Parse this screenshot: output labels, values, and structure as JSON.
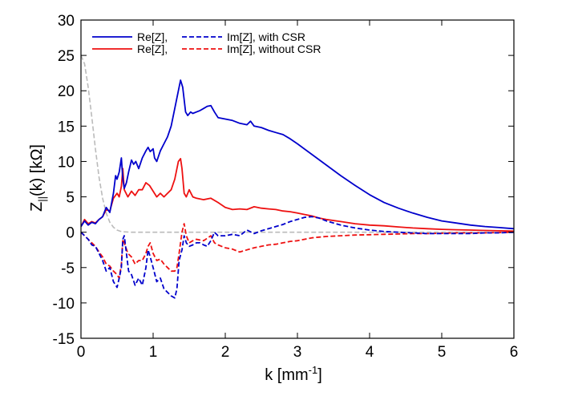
{
  "chart_data": {
    "type": "line",
    "xlabel": "k [mm",
    "xlabel_sup": "-1",
    "xlabel_end": "]",
    "ylabel": "Z",
    "ylabel_sub": "||",
    "ylabel_end": "(k) [kΩ]",
    "xlim": [
      0,
      6
    ],
    "ylim": [
      -15,
      30
    ],
    "xticks": [
      "0",
      "1",
      "2",
      "3",
      "4",
      "5",
      "6"
    ],
    "yticks": [
      "-15",
      "-10",
      "-5",
      "0",
      "5",
      "10",
      "15",
      "20",
      "25",
      "30"
    ],
    "grid": false,
    "legend_position": "top-left",
    "legend_rows": [
      {
        "left": "Re[Z],",
        "right": "Im[Z],  with CSR"
      },
      {
        "left": "Re[Z],",
        "right": "Im[Z],  without CSR"
      }
    ],
    "colors": {
      "with_csr": "#0000cc",
      "without_csr": "#ee1111",
      "bunch": "#bbbbbb"
    },
    "series": [
      {
        "key": "re_with",
        "style": "solid",
        "color": "#0000cc",
        "points": [
          [
            0,
            0.8
          ],
          [
            0.05,
            1.6
          ],
          [
            0.1,
            1.0
          ],
          [
            0.15,
            1.4
          ],
          [
            0.2,
            1.2
          ],
          [
            0.25,
            1.8
          ],
          [
            0.3,
            2.2
          ],
          [
            0.35,
            3.5
          ],
          [
            0.4,
            2.8
          ],
          [
            0.45,
            5.5
          ],
          [
            0.48,
            8.0
          ],
          [
            0.5,
            7.5
          ],
          [
            0.53,
            8.5
          ],
          [
            0.56,
            10.5
          ],
          [
            0.58,
            7.5
          ],
          [
            0.6,
            6.2
          ],
          [
            0.63,
            7.0
          ],
          [
            0.66,
            8.5
          ],
          [
            0.7,
            10.2
          ],
          [
            0.73,
            9.6
          ],
          [
            0.76,
            10.0
          ],
          [
            0.8,
            9.0
          ],
          [
            0.85,
            10.5
          ],
          [
            0.9,
            11.5
          ],
          [
            0.93,
            12.0
          ],
          [
            0.96,
            11.4
          ],
          [
            1.0,
            11.8
          ],
          [
            1.02,
            10.5
          ],
          [
            1.05,
            10.0
          ],
          [
            1.1,
            11.5
          ],
          [
            1.15,
            12.5
          ],
          [
            1.2,
            13.5
          ],
          [
            1.25,
            15.0
          ],
          [
            1.3,
            17.5
          ],
          [
            1.35,
            20.0
          ],
          [
            1.38,
            21.5
          ],
          [
            1.41,
            20.5
          ],
          [
            1.45,
            17.0
          ],
          [
            1.48,
            16.5
          ],
          [
            1.52,
            17.0
          ],
          [
            1.55,
            16.8
          ],
          [
            1.6,
            17.0
          ],
          [
            1.65,
            17.2
          ],
          [
            1.7,
            17.5
          ],
          [
            1.75,
            17.8
          ],
          [
            1.8,
            17.9
          ],
          [
            1.85,
            17.0
          ],
          [
            1.9,
            16.2
          ],
          [
            2.0,
            16.0
          ],
          [
            2.1,
            15.8
          ],
          [
            2.2,
            15.4
          ],
          [
            2.3,
            15.2
          ],
          [
            2.35,
            15.7
          ],
          [
            2.4,
            15.0
          ],
          [
            2.5,
            14.8
          ],
          [
            2.6,
            14.4
          ],
          [
            2.7,
            14.1
          ],
          [
            2.8,
            13.8
          ],
          [
            2.9,
            13.2
          ],
          [
            3.0,
            12.5
          ],
          [
            3.2,
            11.0
          ],
          [
            3.4,
            9.5
          ],
          [
            3.6,
            8.0
          ],
          [
            3.8,
            6.6
          ],
          [
            4.0,
            5.3
          ],
          [
            4.2,
            4.2
          ],
          [
            4.4,
            3.4
          ],
          [
            4.6,
            2.7
          ],
          [
            4.8,
            2.1
          ],
          [
            5.0,
            1.6
          ],
          [
            5.2,
            1.3
          ],
          [
            5.4,
            1.0
          ],
          [
            5.6,
            0.8
          ],
          [
            5.8,
            0.65
          ],
          [
            6.0,
            0.5
          ]
        ]
      },
      {
        "key": "re_without",
        "style": "solid",
        "color": "#ee1111",
        "points": [
          [
            0,
            0.8
          ],
          [
            0.05,
            1.8
          ],
          [
            0.1,
            1.2
          ],
          [
            0.15,
            1.5
          ],
          [
            0.2,
            1.3
          ],
          [
            0.25,
            1.8
          ],
          [
            0.3,
            2.2
          ],
          [
            0.35,
            3.2
          ],
          [
            0.4,
            3.0
          ],
          [
            0.45,
            4.8
          ],
          [
            0.5,
            5.5
          ],
          [
            0.53,
            5.0
          ],
          [
            0.56,
            6.5
          ],
          [
            0.58,
            9.0
          ],
          [
            0.6,
            6.0
          ],
          [
            0.65,
            5.0
          ],
          [
            0.7,
            5.8
          ],
          [
            0.75,
            5.2
          ],
          [
            0.8,
            6.0
          ],
          [
            0.85,
            6.0
          ],
          [
            0.9,
            7.0
          ],
          [
            0.95,
            6.6
          ],
          [
            1.0,
            5.8
          ],
          [
            1.05,
            5.0
          ],
          [
            1.1,
            5.5
          ],
          [
            1.15,
            5.0
          ],
          [
            1.2,
            5.5
          ],
          [
            1.25,
            6.0
          ],
          [
            1.3,
            7.5
          ],
          [
            1.35,
            10.0
          ],
          [
            1.38,
            10.4
          ],
          [
            1.4,
            9.0
          ],
          [
            1.43,
            5.5
          ],
          [
            1.46,
            5.0
          ],
          [
            1.5,
            6.0
          ],
          [
            1.55,
            5.0
          ],
          [
            1.6,
            4.8
          ],
          [
            1.7,
            4.6
          ],
          [
            1.8,
            4.8
          ],
          [
            1.9,
            4.2
          ],
          [
            2.0,
            3.5
          ],
          [
            2.1,
            3.2
          ],
          [
            2.2,
            3.3
          ],
          [
            2.3,
            3.2
          ],
          [
            2.4,
            3.6
          ],
          [
            2.5,
            3.4
          ],
          [
            2.6,
            3.3
          ],
          [
            2.7,
            3.2
          ],
          [
            2.8,
            3.0
          ],
          [
            2.9,
            2.9
          ],
          [
            3.0,
            2.7
          ],
          [
            3.1,
            2.5
          ],
          [
            3.2,
            2.3
          ],
          [
            3.3,
            2.0
          ],
          [
            3.4,
            1.8
          ],
          [
            3.6,
            1.5
          ],
          [
            3.8,
            1.2
          ],
          [
            4.0,
            1.0
          ],
          [
            4.2,
            0.9
          ],
          [
            4.4,
            0.75
          ],
          [
            4.6,
            0.6
          ],
          [
            4.8,
            0.5
          ],
          [
            5.0,
            0.4
          ],
          [
            5.2,
            0.35
          ],
          [
            5.4,
            0.3
          ],
          [
            5.6,
            0.25
          ],
          [
            5.8,
            0.2
          ],
          [
            6.0,
            0.15
          ]
        ]
      },
      {
        "key": "im_with",
        "style": "dashed",
        "color": "#0000cc",
        "points": [
          [
            0,
            0
          ],
          [
            0.05,
            -0.5
          ],
          [
            0.1,
            -1.0
          ],
          [
            0.15,
            -1.8
          ],
          [
            0.2,
            -2.0
          ],
          [
            0.25,
            -3.0
          ],
          [
            0.3,
            -4.0
          ],
          [
            0.35,
            -5.5
          ],
          [
            0.4,
            -5.0
          ],
          [
            0.45,
            -7.0
          ],
          [
            0.5,
            -7.8
          ],
          [
            0.53,
            -6.5
          ],
          [
            0.56,
            -5.0
          ],
          [
            0.58,
            -1.0
          ],
          [
            0.6,
            -0.5
          ],
          [
            0.63,
            -3.0
          ],
          [
            0.66,
            -5.5
          ],
          [
            0.7,
            -6.0
          ],
          [
            0.75,
            -7.5
          ],
          [
            0.8,
            -6.5
          ],
          [
            0.85,
            -7.5
          ],
          [
            0.9,
            -5.0
          ],
          [
            0.93,
            -2.5
          ],
          [
            0.96,
            -3.5
          ],
          [
            1.0,
            -5.0
          ],
          [
            1.05,
            -7.0
          ],
          [
            1.1,
            -6.5
          ],
          [
            1.15,
            -8.0
          ],
          [
            1.2,
            -8.5
          ],
          [
            1.25,
            -9.0
          ],
          [
            1.3,
            -9.3
          ],
          [
            1.33,
            -8.0
          ],
          [
            1.36,
            -4.0
          ],
          [
            1.4,
            -2.5
          ],
          [
            1.43,
            -0.5
          ],
          [
            1.46,
            -1.5
          ],
          [
            1.5,
            -2.0
          ],
          [
            1.55,
            -1.8
          ],
          [
            1.6,
            -1.5
          ],
          [
            1.65,
            -1.5
          ],
          [
            1.7,
            -1.8
          ],
          [
            1.75,
            -2.0
          ],
          [
            1.8,
            -1.2
          ],
          [
            1.85,
            0.0
          ],
          [
            1.9,
            -0.5
          ],
          [
            2.0,
            -0.5
          ],
          [
            2.1,
            -0.3
          ],
          [
            2.2,
            -0.5
          ],
          [
            2.3,
            0.3
          ],
          [
            2.4,
            -0.2
          ],
          [
            2.5,
            0.2
          ],
          [
            2.6,
            0.5
          ],
          [
            2.7,
            0.8
          ],
          [
            2.8,
            1.1
          ],
          [
            2.9,
            1.5
          ],
          [
            3.0,
            1.8
          ],
          [
            3.1,
            2.1
          ],
          [
            3.2,
            2.2
          ],
          [
            3.3,
            2.0
          ],
          [
            3.4,
            1.6
          ],
          [
            3.6,
            1.0
          ],
          [
            3.8,
            0.6
          ],
          [
            4.0,
            0.3
          ],
          [
            4.2,
            0.1
          ],
          [
            4.4,
            0.0
          ],
          [
            4.6,
            -0.1
          ],
          [
            4.8,
            -0.2
          ],
          [
            5.0,
            -0.2
          ],
          [
            5.2,
            -0.2
          ],
          [
            5.4,
            -0.2
          ],
          [
            5.6,
            -0.1
          ],
          [
            5.8,
            -0.1
          ],
          [
            6.0,
            0.0
          ]
        ]
      },
      {
        "key": "im_without",
        "style": "dashed",
        "color": "#ee1111",
        "points": [
          [
            0,
            0
          ],
          [
            0.05,
            -0.5
          ],
          [
            0.1,
            -1.0
          ],
          [
            0.15,
            -1.5
          ],
          [
            0.2,
            -2.0
          ],
          [
            0.25,
            -2.8
          ],
          [
            0.3,
            -3.5
          ],
          [
            0.35,
            -4.5
          ],
          [
            0.4,
            -4.8
          ],
          [
            0.45,
            -5.5
          ],
          [
            0.5,
            -6.0
          ],
          [
            0.53,
            -6.5
          ],
          [
            0.56,
            -4.5
          ],
          [
            0.58,
            -1.0
          ],
          [
            0.6,
            -1.5
          ],
          [
            0.65,
            -3.0
          ],
          [
            0.7,
            -3.5
          ],
          [
            0.75,
            -4.5
          ],
          [
            0.8,
            -4.0
          ],
          [
            0.85,
            -4.0
          ],
          [
            0.9,
            -3.0
          ],
          [
            0.93,
            -2.0
          ],
          [
            0.96,
            -1.5
          ],
          [
            1.0,
            -3.0
          ],
          [
            1.05,
            -4.0
          ],
          [
            1.1,
            -3.8
          ],
          [
            1.15,
            -4.5
          ],
          [
            1.2,
            -5.0
          ],
          [
            1.25,
            -5.5
          ],
          [
            1.3,
            -5.5
          ],
          [
            1.33,
            -5.0
          ],
          [
            1.36,
            -3.0
          ],
          [
            1.4,
            0.0
          ],
          [
            1.43,
            1.2
          ],
          [
            1.46,
            -0.5
          ],
          [
            1.5,
            -1.5
          ],
          [
            1.55,
            -1.2
          ],
          [
            1.6,
            -1.0
          ],
          [
            1.7,
            -1.2
          ],
          [
            1.8,
            -0.5
          ],
          [
            1.85,
            -1.5
          ],
          [
            1.9,
            -1.8
          ],
          [
            2.0,
            -2.2
          ],
          [
            2.1,
            -2.4
          ],
          [
            2.2,
            -2.8
          ],
          [
            2.3,
            -2.5
          ],
          [
            2.4,
            -2.2
          ],
          [
            2.5,
            -2.0
          ],
          [
            2.6,
            -1.8
          ],
          [
            2.7,
            -1.7
          ],
          [
            2.8,
            -1.5
          ],
          [
            2.9,
            -1.3
          ],
          [
            3.0,
            -1.2
          ],
          [
            3.1,
            -1.0
          ],
          [
            3.2,
            -0.8
          ],
          [
            3.3,
            -0.7
          ],
          [
            3.4,
            -0.6
          ],
          [
            3.6,
            -0.5
          ],
          [
            3.8,
            -0.4
          ],
          [
            4.0,
            -0.35
          ],
          [
            4.2,
            -0.3
          ],
          [
            4.4,
            -0.25
          ],
          [
            4.6,
            -0.2
          ],
          [
            4.8,
            -0.2
          ],
          [
            5.0,
            -0.15
          ],
          [
            5.2,
            -0.1
          ],
          [
            5.4,
            -0.1
          ],
          [
            5.6,
            -0.1
          ],
          [
            5.8,
            -0.05
          ],
          [
            6.0,
            0.0
          ]
        ]
      },
      {
        "key": "bunch",
        "style": "dashed",
        "color": "#bbbbbb",
        "points": [
          [
            0,
            25
          ],
          [
            0.05,
            23.8
          ],
          [
            0.1,
            20.5
          ],
          [
            0.15,
            16.3
          ],
          [
            0.2,
            11.8
          ],
          [
            0.25,
            7.8
          ],
          [
            0.3,
            4.8
          ],
          [
            0.35,
            2.7
          ],
          [
            0.4,
            1.4
          ],
          [
            0.45,
            0.7
          ],
          [
            0.5,
            0.3
          ],
          [
            0.55,
            0.12
          ],
          [
            0.6,
            0.05
          ],
          [
            0.7,
            0.0
          ],
          [
            1.0,
            0.0
          ],
          [
            2.0,
            0.0
          ],
          [
            3.0,
            0.0
          ],
          [
            4.0,
            0.0
          ],
          [
            5.0,
            0.0
          ],
          [
            6.0,
            0.0
          ]
        ]
      }
    ]
  }
}
